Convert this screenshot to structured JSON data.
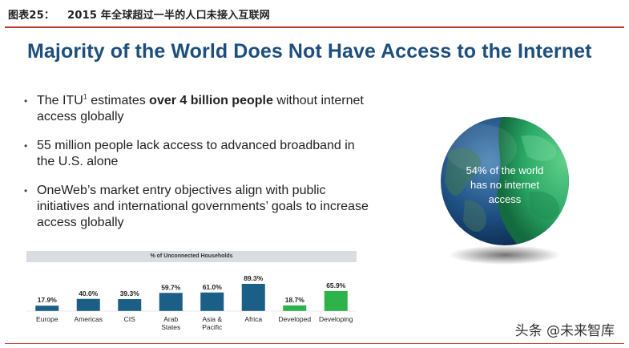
{
  "figure": {
    "label": "图表25：",
    "title": "2015 年全球超过一半的人口未接入互联网"
  },
  "slide": {
    "title": "Majority of the World Does Not Have Access to the Internet",
    "bullets": [
      {
        "pre": "The ITU",
        "sup": "1",
        "mid": " estimates ",
        "bold": "over 4 billion people",
        "post": " without internet access globally"
      },
      {
        "text": "55 million people lack access to advanced broadband in the U.S. alone"
      },
      {
        "text": "OneWeb’s market entry objectives align with public initiatives and international governments’ goals to increase access globally"
      }
    ],
    "globe": {
      "line1": "54% of the world",
      "line2": "has no internet",
      "line3": "access"
    }
  },
  "chart_data": {
    "type": "bar",
    "title": "% of Unconnected Households",
    "categories": [
      "Europe",
      "Americas",
      "CIS",
      "Arab States",
      "Asia & Pacific",
      "Africa",
      "Developed",
      "Developing"
    ],
    "category_lines": [
      [
        "Europe"
      ],
      [
        "Americas"
      ],
      [
        "CIS"
      ],
      [
        "Arab",
        "States"
      ],
      [
        "Asia &",
        "Pacific"
      ],
      [
        "Africa"
      ],
      [
        "Developed"
      ],
      [
        "Developing"
      ]
    ],
    "values": [
      17.9,
      40.0,
      39.3,
      59.7,
      61.0,
      89.3,
      18.7,
      65.9
    ],
    "value_labels": [
      "17.9%",
      "40.0%",
      "39.3%",
      "59.7%",
      "61.0%",
      "89.3%",
      "18.7%",
      "65.9%"
    ],
    "colors": [
      "#1b5e86",
      "#1b5e86",
      "#1b5e86",
      "#1b5e86",
      "#1b5e86",
      "#1b5e86",
      "#2db34a",
      "#2db34a"
    ],
    "ylim": [
      0,
      100
    ],
    "grid": false
  },
  "watermark": "头条 @未来智库"
}
